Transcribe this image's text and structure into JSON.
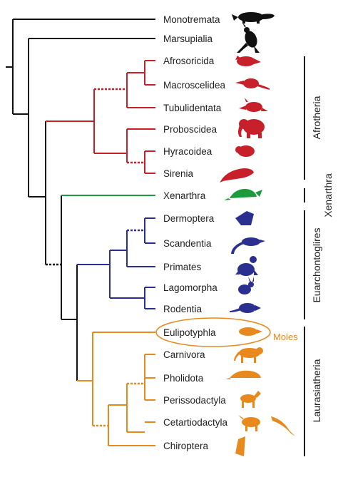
{
  "colors": {
    "basal": "#111111",
    "afrotheria": "#c8202a",
    "xenarthra": "#1d9a3c",
    "euarchontoglires": "#2b2f8f",
    "laurasiatheria": "#e8891d",
    "silhouette_black": "#111111"
  },
  "taxa": [
    {
      "name": "Monotremata",
      "icon": "platypus-icon"
    },
    {
      "name": "Marsupialia",
      "icon": "kangaroo-icon"
    },
    {
      "name": "Afrosoricida",
      "icon": "tenrec-icon"
    },
    {
      "name": "Macroscelidea",
      "icon": "elephant-shrew-icon"
    },
    {
      "name": "Tubulidentata",
      "icon": "aardvark-icon"
    },
    {
      "name": "Proboscidea",
      "icon": "elephant-icon"
    },
    {
      "name": "Hyracoidea",
      "icon": "hyrax-icon"
    },
    {
      "name": "Sirenia",
      "icon": "manatee-icon"
    },
    {
      "name": "Xenarthra",
      "icon": "armadillo-icon"
    },
    {
      "name": "Dermoptera",
      "icon": "colugo-icon"
    },
    {
      "name": "Scandentia",
      "icon": "treeshrew-icon"
    },
    {
      "name": "Primates",
      "icon": "primate-icon"
    },
    {
      "name": "Lagomorpha",
      "icon": "rabbit-icon"
    },
    {
      "name": "Rodentia",
      "icon": "rodent-icon"
    },
    {
      "name": "Eulipotyphla",
      "icon": "mole-icon"
    },
    {
      "name": "Carnivora",
      "icon": "carnivore-icon"
    },
    {
      "name": "Pholidota",
      "icon": "pangolin-icon"
    },
    {
      "name": "Perissodactyla",
      "icon": "horse-icon"
    },
    {
      "name": "Cetartiodactyla",
      "icon": "cetartiodactyl-icon"
    },
    {
      "name": "Chiroptera",
      "icon": "bat-icon"
    }
  ],
  "groups": {
    "afrotheria": "Afrotheria",
    "xenarthra": "Xenarthra",
    "euarchontoglires": "Euarchontoglires",
    "laurasiatheria": "Laurasiatheria"
  },
  "annotation": {
    "label": "Moles",
    "color": "#e8891d"
  }
}
